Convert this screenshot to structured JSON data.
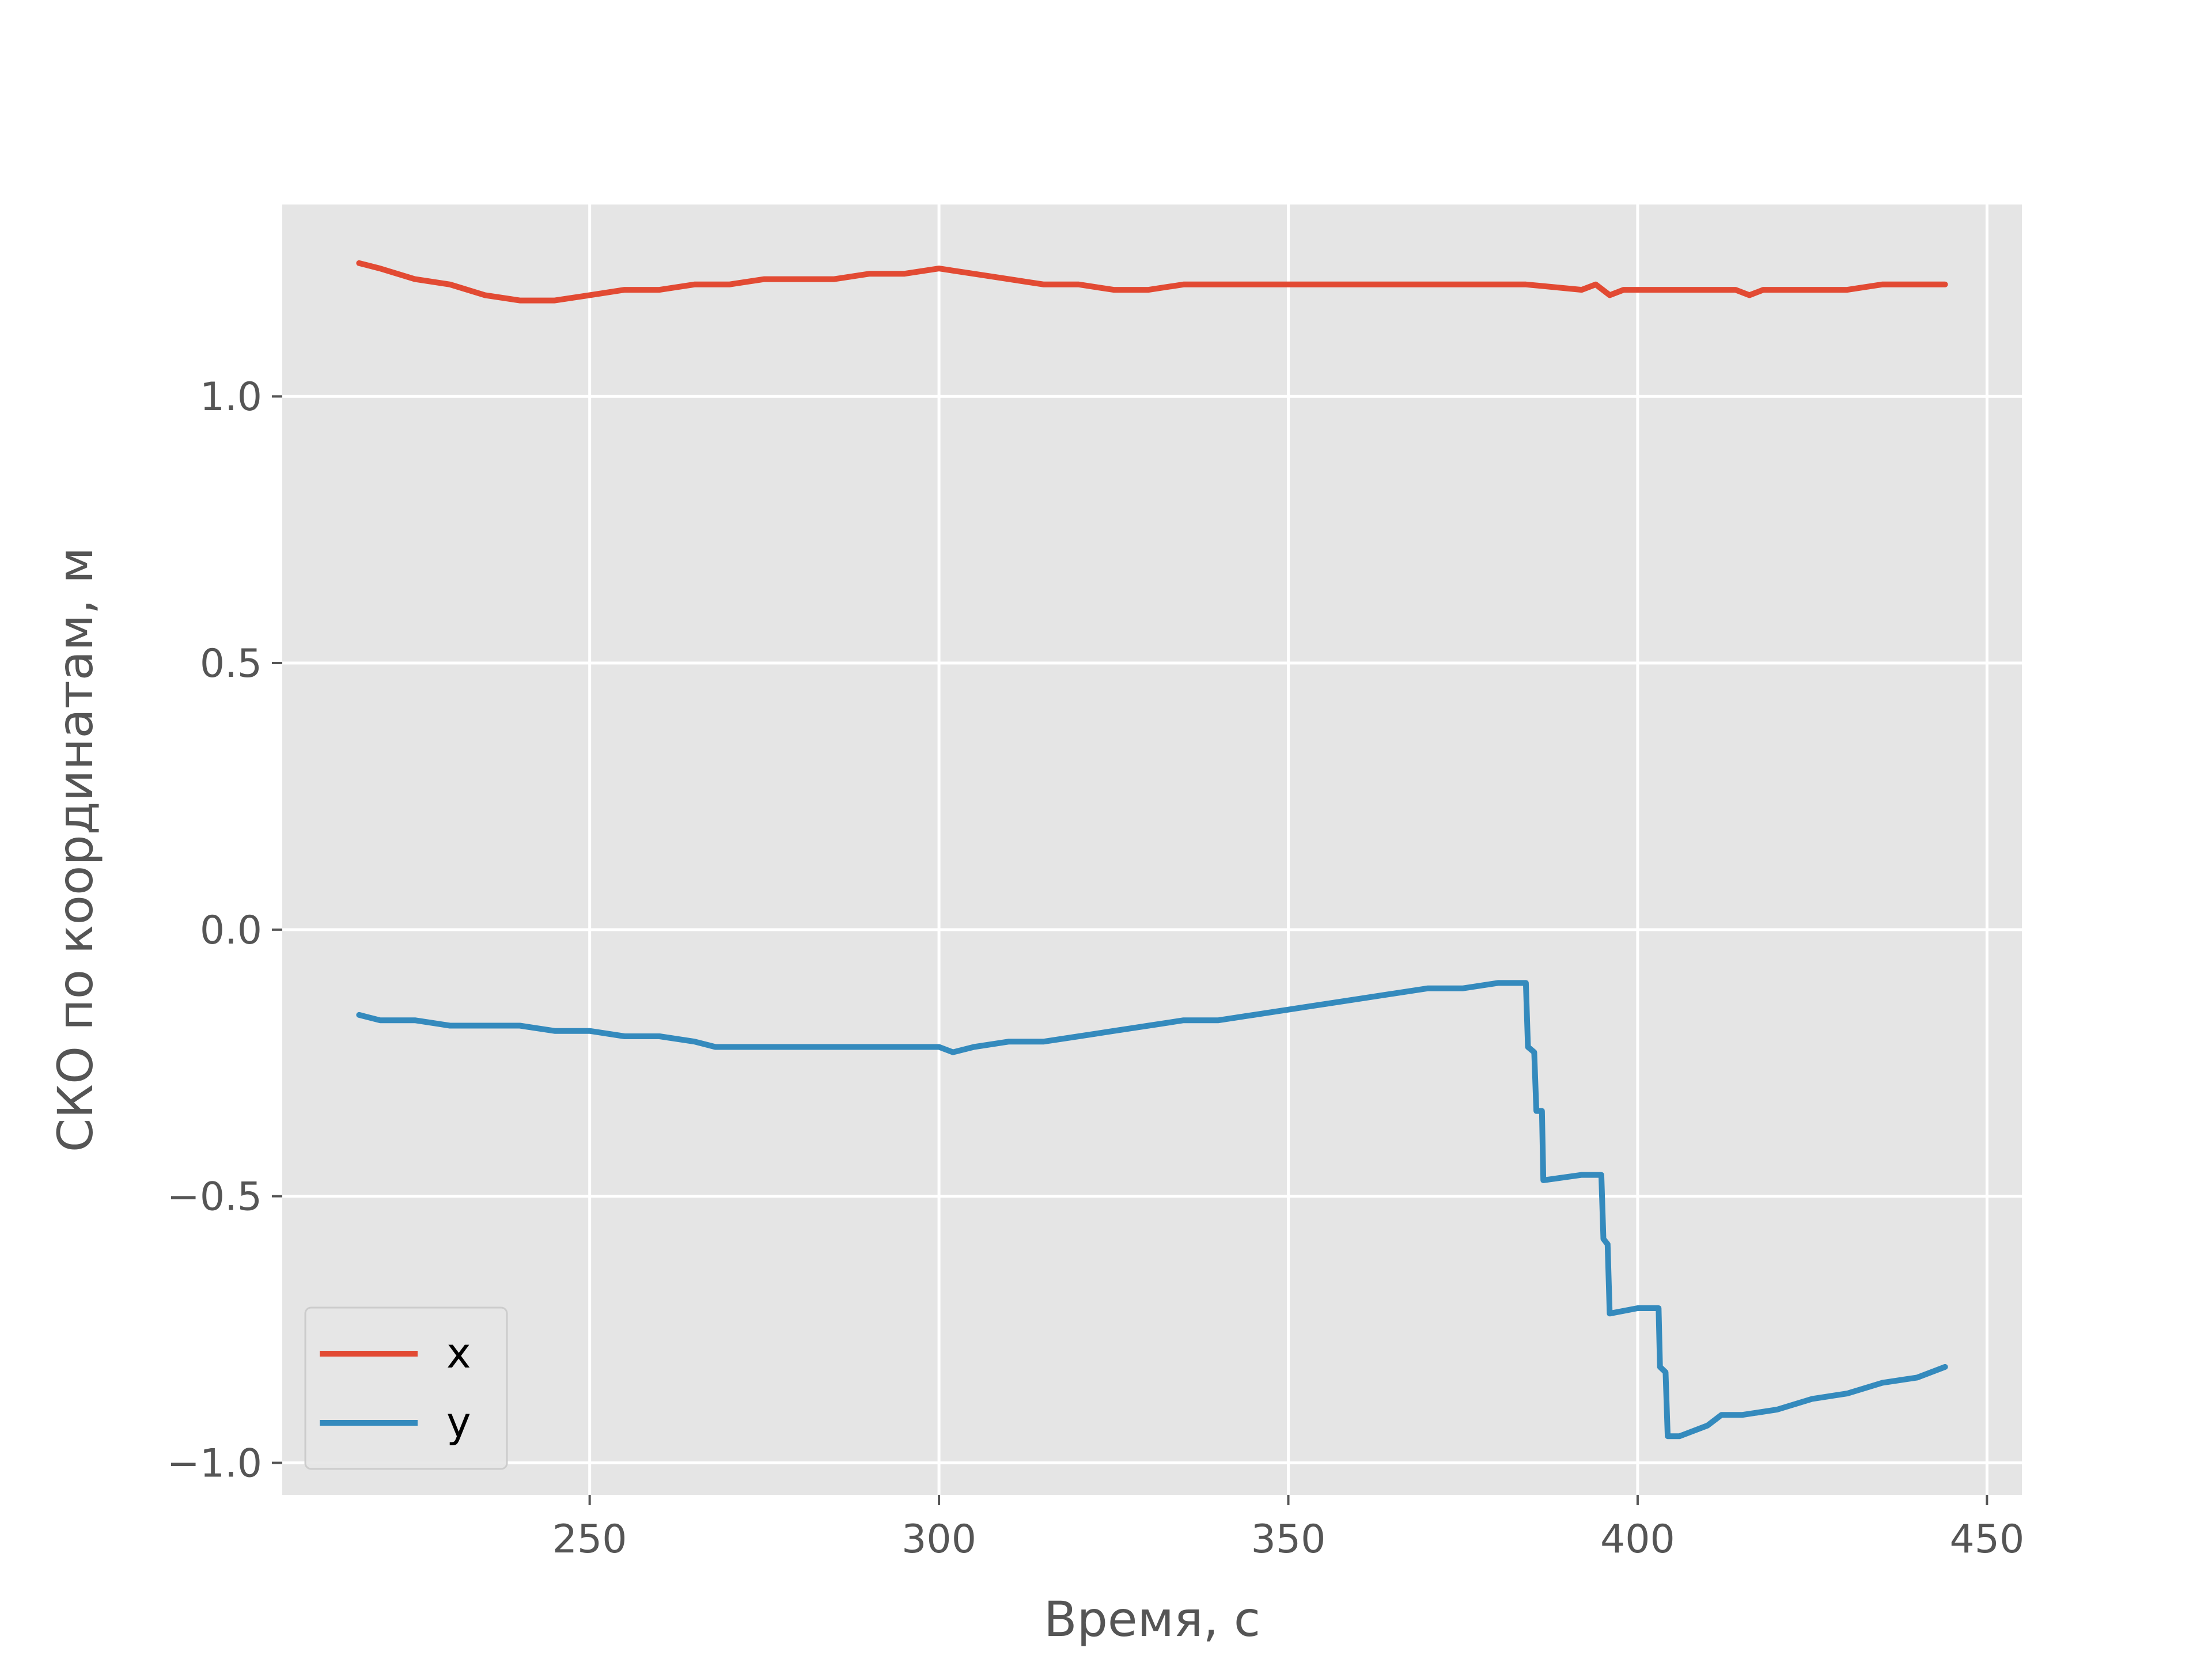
{
  "chart_data": {
    "type": "line",
    "title": "",
    "xlabel": "Время, с",
    "ylabel": "СКО по координатам, м",
    "xlim": [
      206,
      455
    ],
    "ylim": [
      -1.06,
      1.36
    ],
    "xticks": [
      {
        "value": 250,
        "label": "250"
      },
      {
        "value": 300,
        "label": "300"
      },
      {
        "value": 350,
        "label": "350"
      },
      {
        "value": 400,
        "label": "400"
      },
      {
        "value": 450,
        "label": "450"
      }
    ],
    "yticks": [
      {
        "value": -1.0,
        "label": "−1.0"
      },
      {
        "value": -0.5,
        "label": "−0.5"
      },
      {
        "value": 0.0,
        "label": "0.0"
      },
      {
        "value": 0.5,
        "label": "0.5"
      },
      {
        "value": 1.0,
        "label": "1.0"
      }
    ],
    "grid": true,
    "legend_position": "lower-left",
    "background": "#e5e5e5",
    "series": [
      {
        "name": "x",
        "color": "#e24a33",
        "points": [
          [
            217,
            1.25
          ],
          [
            220,
            1.24
          ],
          [
            225,
            1.22
          ],
          [
            230,
            1.21
          ],
          [
            235,
            1.19
          ],
          [
            240,
            1.18
          ],
          [
            245,
            1.18
          ],
          [
            250,
            1.19
          ],
          [
            255,
            1.2
          ],
          [
            260,
            1.2
          ],
          [
            265,
            1.21
          ],
          [
            270,
            1.21
          ],
          [
            275,
            1.22
          ],
          [
            280,
            1.22
          ],
          [
            285,
            1.22
          ],
          [
            290,
            1.23
          ],
          [
            295,
            1.23
          ],
          [
            300,
            1.24
          ],
          [
            305,
            1.23
          ],
          [
            310,
            1.22
          ],
          [
            315,
            1.21
          ],
          [
            320,
            1.21
          ],
          [
            325,
            1.2
          ],
          [
            330,
            1.2
          ],
          [
            335,
            1.21
          ],
          [
            340,
            1.21
          ],
          [
            345,
            1.21
          ],
          [
            350,
            1.21
          ],
          [
            355,
            1.21
          ],
          [
            360,
            1.21
          ],
          [
            365,
            1.21
          ],
          [
            370,
            1.21
          ],
          [
            375,
            1.21
          ],
          [
            380,
            1.21
          ],
          [
            384,
            1.21
          ],
          [
            392,
            1.2
          ],
          [
            394,
            1.21
          ],
          [
            396,
            1.19
          ],
          [
            398,
            1.2
          ],
          [
            402,
            1.2
          ],
          [
            405,
            1.2
          ],
          [
            410,
            1.2
          ],
          [
            414,
            1.2
          ],
          [
            416,
            1.19
          ],
          [
            418,
            1.2
          ],
          [
            422,
            1.2
          ],
          [
            426,
            1.2
          ],
          [
            430,
            1.2
          ],
          [
            435,
            1.21
          ],
          [
            440,
            1.21
          ],
          [
            444,
            1.21
          ]
        ]
      },
      {
        "name": "y",
        "color": "#348abd",
        "points": [
          [
            217,
            -0.16
          ],
          [
            220,
            -0.17
          ],
          [
            225,
            -0.17
          ],
          [
            230,
            -0.18
          ],
          [
            235,
            -0.18
          ],
          [
            240,
            -0.18
          ],
          [
            245,
            -0.19
          ],
          [
            250,
            -0.19
          ],
          [
            255,
            -0.2
          ],
          [
            260,
            -0.2
          ],
          [
            265,
            -0.21
          ],
          [
            268,
            -0.22
          ],
          [
            270,
            -0.22
          ],
          [
            275,
            -0.22
          ],
          [
            280,
            -0.22
          ],
          [
            285,
            -0.22
          ],
          [
            290,
            -0.22
          ],
          [
            295,
            -0.22
          ],
          [
            300,
            -0.22
          ],
          [
            302,
            -0.23
          ],
          [
            305,
            -0.22
          ],
          [
            310,
            -0.21
          ],
          [
            315,
            -0.21
          ],
          [
            320,
            -0.2
          ],
          [
            325,
            -0.19
          ],
          [
            330,
            -0.18
          ],
          [
            335,
            -0.17
          ],
          [
            340,
            -0.17
          ],
          [
            345,
            -0.16
          ],
          [
            350,
            -0.15
          ],
          [
            355,
            -0.14
          ],
          [
            360,
            -0.13
          ],
          [
            365,
            -0.12
          ],
          [
            370,
            -0.11
          ],
          [
            375,
            -0.11
          ],
          [
            380,
            -0.1
          ],
          [
            384,
            -0.1
          ],
          [
            384.3,
            -0.22
          ],
          [
            385.2,
            -0.23
          ],
          [
            385.5,
            -0.34
          ],
          [
            386.3,
            -0.34
          ],
          [
            386.5,
            -0.47
          ],
          [
            392,
            -0.46
          ],
          [
            394.8,
            -0.46
          ],
          [
            395.1,
            -0.58
          ],
          [
            395.7,
            -0.59
          ],
          [
            396,
            -0.72
          ],
          [
            400,
            -0.71
          ],
          [
            403,
            -0.71
          ],
          [
            403.2,
            -0.82
          ],
          [
            404,
            -0.83
          ],
          [
            404.3,
            -0.95
          ],
          [
            406,
            -0.95
          ],
          [
            410,
            -0.93
          ],
          [
            412,
            -0.91
          ],
          [
            415,
            -0.91
          ],
          [
            420,
            -0.9
          ],
          [
            425,
            -0.88
          ],
          [
            430,
            -0.87
          ],
          [
            435,
            -0.85
          ],
          [
            440,
            -0.84
          ],
          [
            444,
            -0.82
          ]
        ]
      }
    ]
  }
}
